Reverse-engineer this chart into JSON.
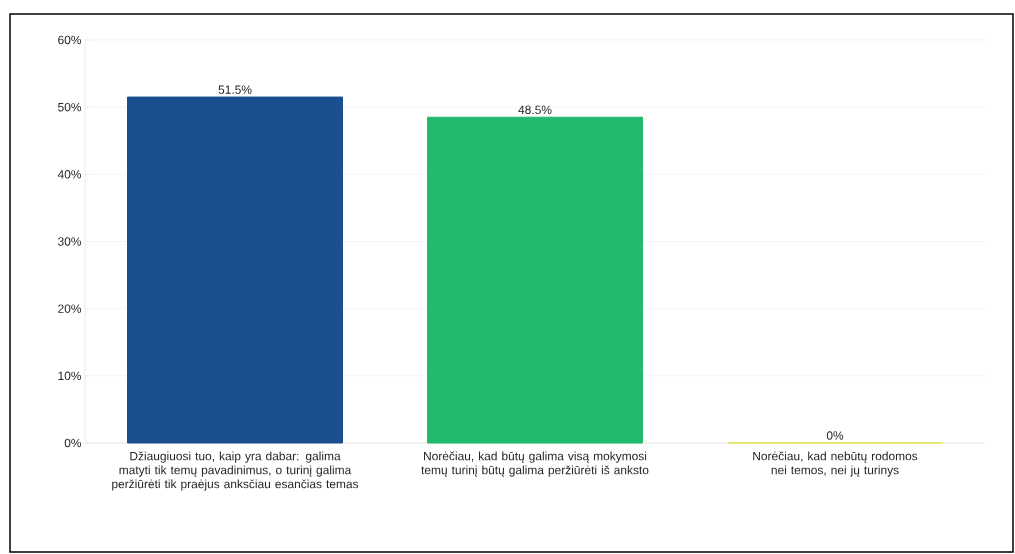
{
  "chart_data": {
    "type": "bar",
    "categories": [
      "Džiaugiuosi tuo, kaip yra dabar: galima matyti tik temų pavadinimus, o turinį galima peržiūrėti tik praėjus anksčiau esančias temas",
      "Norėčiau, kad būtų galima visą mokymosi temų turinį būtų galima peržiūrėti iš anksto",
      "Norėčiau, kad nebūtų rodomos nei temos, nei jų turinys"
    ],
    "values": [
      51.5,
      48.5,
      0
    ],
    "colors": [
      "#1a4e8e",
      "#1fba6d",
      "#e4e84a"
    ],
    "value_labels": [
      "51.5%",
      "48.5%",
      "0%"
    ],
    "ylim": [
      0,
      60
    ],
    "yticks": [
      {
        "value": 0,
        "label": "0%"
      },
      {
        "value": 10,
        "label": "10%"
      },
      {
        "value": 20,
        "label": "20%"
      },
      {
        "value": 30,
        "label": "30%"
      },
      {
        "value": 40,
        "label": "40%"
      },
      {
        "value": 50,
        "label": "50%"
      },
      {
        "value": 60,
        "label": "60%"
      }
    ],
    "grid": "y"
  }
}
